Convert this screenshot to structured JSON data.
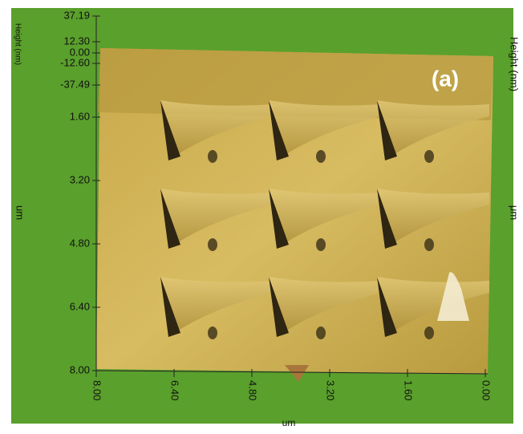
{
  "figure": {
    "panel_label": "(a)",
    "height_axis": {
      "title": "Height (nm)",
      "ticks": [
        "37.19",
        "12.30",
        "0.00",
        "-12.60",
        "-37.49"
      ]
    },
    "right_height_title": "Height (nm)",
    "y_axis": {
      "title": "um",
      "ticks": [
        "1.60",
        "3.20",
        "4.80",
        "6.40",
        "8.00"
      ]
    },
    "right_y_title": "μm",
    "x_axis": {
      "title": "um",
      "ticks": [
        "8.00",
        "6.40",
        "4.80",
        "3.20",
        "1.60",
        "0.00"
      ]
    }
  }
}
